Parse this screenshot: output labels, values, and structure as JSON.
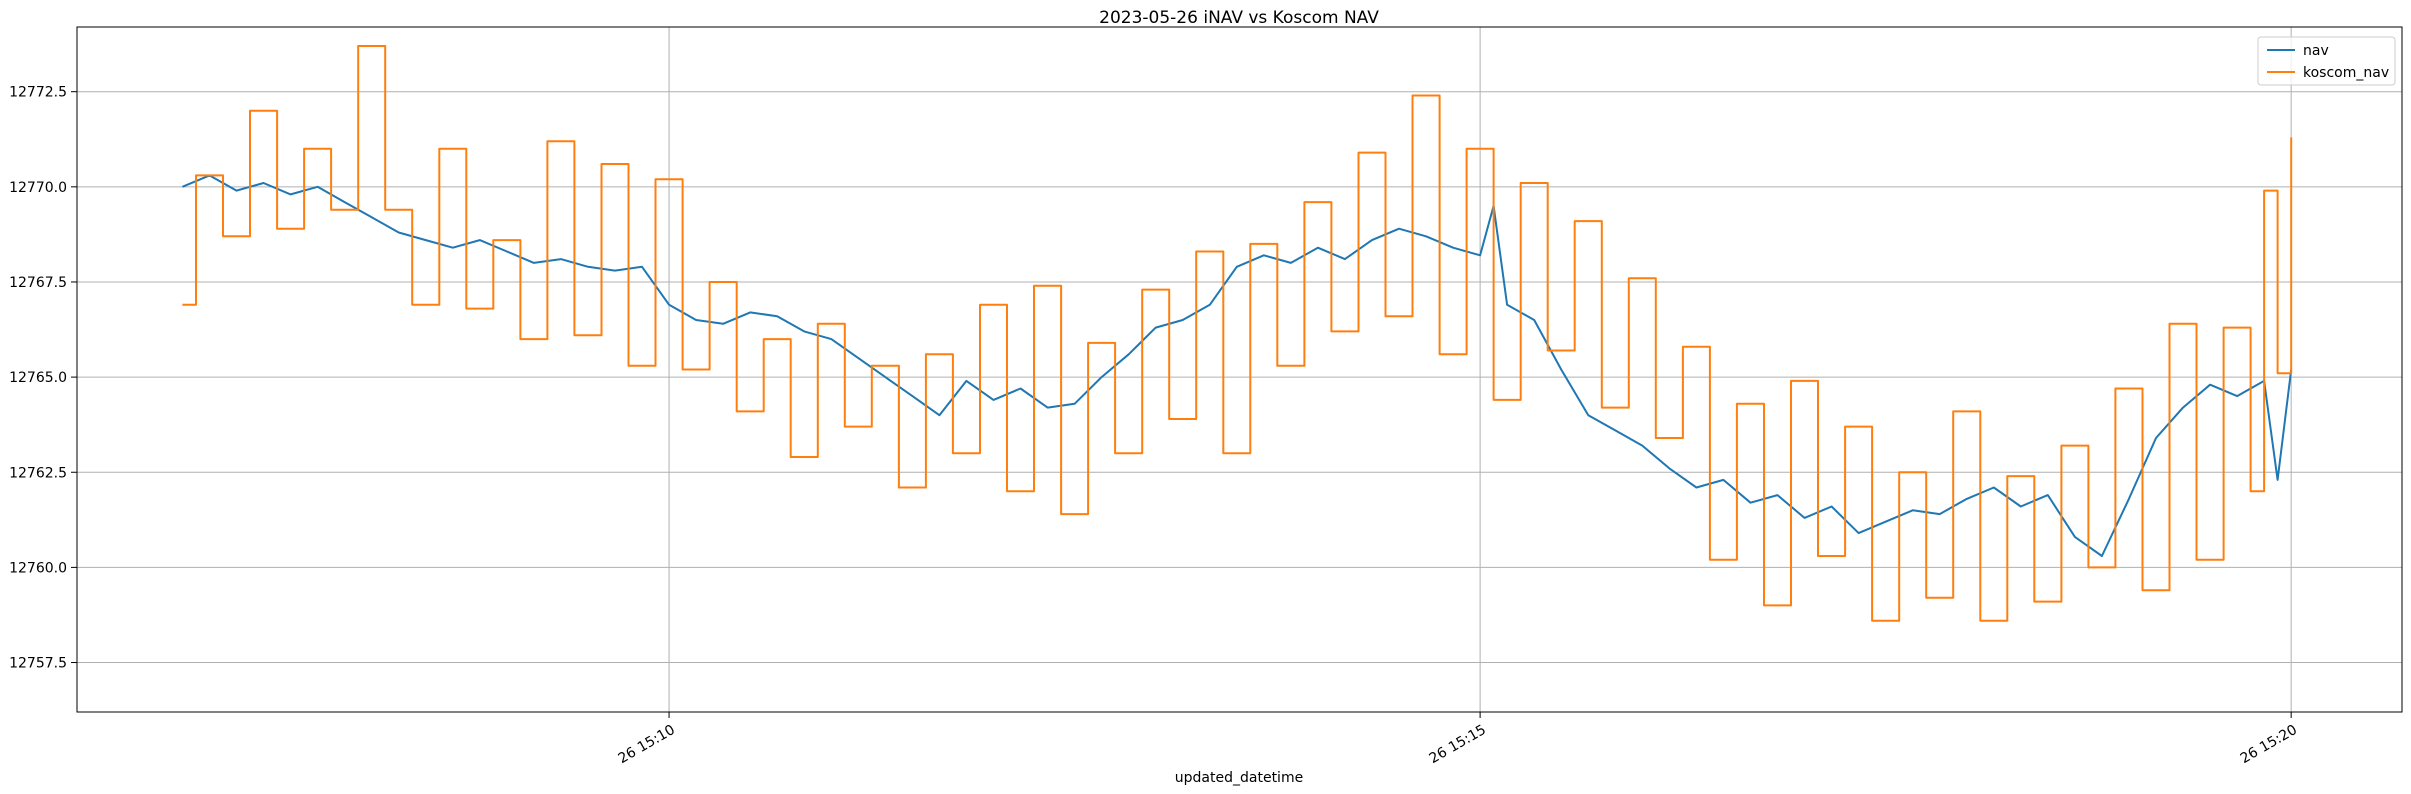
{
  "chart_data": {
    "type": "line",
    "title": "2023-05-26 iNAV vs Koscom NAV",
    "xlabel": "updated_datetime",
    "ylabel": "",
    "x_axis": {
      "kind": "time",
      "range": [
        "2023-05-26 15:06:21",
        "2023-05-26 15:20:41"
      ],
      "ticks": [
        {
          "value": "2023-05-26 15:10:00",
          "label": "26 15:10"
        },
        {
          "value": "2023-05-26 15:15:00",
          "label": "26 15:15"
        },
        {
          "value": "2023-05-26 15:20:00",
          "label": "26 15:20"
        }
      ]
    },
    "y_axis": {
      "range": [
        12756.2,
        12774.2
      ],
      "ticks": [
        {
          "value": 12757.5,
          "label": "12757.5"
        },
        {
          "value": 12760.0,
          "label": "12760.0"
        },
        {
          "value": 12762.5,
          "label": "12762.5"
        },
        {
          "value": 12765.0,
          "label": "12765.0"
        },
        {
          "value": 12767.5,
          "label": "12767.5"
        },
        {
          "value": 12770.0,
          "label": "12770.0"
        },
        {
          "value": 12772.5,
          "label": "12772.5"
        }
      ]
    },
    "grid": true,
    "legend_position": "top-right",
    "series": [
      {
        "name": "nav",
        "color": "#1f77b4",
        "step": false,
        "points": [
          [
            "2023-05-26 15:07:00",
            12770.0
          ],
          [
            "2023-05-26 15:07:10",
            12770.3
          ],
          [
            "2023-05-26 15:07:20",
            12769.9
          ],
          [
            "2023-05-26 15:07:30",
            12770.1
          ],
          [
            "2023-05-26 15:07:40",
            12769.8
          ],
          [
            "2023-05-26 15:07:50",
            12770.0
          ],
          [
            "2023-05-26 15:08:00",
            12769.6
          ],
          [
            "2023-05-26 15:08:10",
            12769.2
          ],
          [
            "2023-05-26 15:08:20",
            12768.8
          ],
          [
            "2023-05-26 15:08:30",
            12768.6
          ],
          [
            "2023-05-26 15:08:40",
            12768.4
          ],
          [
            "2023-05-26 15:08:50",
            12768.6
          ],
          [
            "2023-05-26 15:09:00",
            12768.3
          ],
          [
            "2023-05-26 15:09:10",
            12768.0
          ],
          [
            "2023-05-26 15:09:20",
            12768.1
          ],
          [
            "2023-05-26 15:09:30",
            12767.9
          ],
          [
            "2023-05-26 15:09:40",
            12767.8
          ],
          [
            "2023-05-26 15:09:50",
            12767.9
          ],
          [
            "2023-05-26 15:10:00",
            12766.9
          ],
          [
            "2023-05-26 15:10:10",
            12766.5
          ],
          [
            "2023-05-26 15:10:20",
            12766.4
          ],
          [
            "2023-05-26 15:10:30",
            12766.7
          ],
          [
            "2023-05-26 15:10:40",
            12766.6
          ],
          [
            "2023-05-26 15:10:50",
            12766.2
          ],
          [
            "2023-05-26 15:11:00",
            12766.0
          ],
          [
            "2023-05-26 15:11:10",
            12765.5
          ],
          [
            "2023-05-26 15:11:20",
            12765.0
          ],
          [
            "2023-05-26 15:11:30",
            12764.5
          ],
          [
            "2023-05-26 15:11:40",
            12764.0
          ],
          [
            "2023-05-26 15:11:50",
            12764.9
          ],
          [
            "2023-05-26 15:12:00",
            12764.4
          ],
          [
            "2023-05-26 15:12:10",
            12764.7
          ],
          [
            "2023-05-26 15:12:20",
            12764.2
          ],
          [
            "2023-05-26 15:12:30",
            12764.3
          ],
          [
            "2023-05-26 15:12:40",
            12765.0
          ],
          [
            "2023-05-26 15:12:50",
            12765.6
          ],
          [
            "2023-05-26 15:13:00",
            12766.3
          ],
          [
            "2023-05-26 15:13:10",
            12766.5
          ],
          [
            "2023-05-26 15:13:20",
            12766.9
          ],
          [
            "2023-05-26 15:13:30",
            12767.9
          ],
          [
            "2023-05-26 15:13:40",
            12768.2
          ],
          [
            "2023-05-26 15:13:50",
            12768.0
          ],
          [
            "2023-05-26 15:14:00",
            12768.4
          ],
          [
            "2023-05-26 15:14:10",
            12768.1
          ],
          [
            "2023-05-26 15:14:20",
            12768.6
          ],
          [
            "2023-05-26 15:14:30",
            12768.9
          ],
          [
            "2023-05-26 15:14:40",
            12768.7
          ],
          [
            "2023-05-26 15:14:50",
            12768.4
          ],
          [
            "2023-05-26 15:15:00",
            12768.2
          ],
          [
            "2023-05-26 15:15:05",
            12769.5
          ],
          [
            "2023-05-26 15:15:10",
            12766.9
          ],
          [
            "2023-05-26 15:15:20",
            12766.5
          ],
          [
            "2023-05-26 15:15:30",
            12765.2
          ],
          [
            "2023-05-26 15:15:40",
            12764.0
          ],
          [
            "2023-05-26 15:15:50",
            12763.6
          ],
          [
            "2023-05-26 15:16:00",
            12763.2
          ],
          [
            "2023-05-26 15:16:10",
            12762.6
          ],
          [
            "2023-05-26 15:16:20",
            12762.1
          ],
          [
            "2023-05-26 15:16:30",
            12762.3
          ],
          [
            "2023-05-26 15:16:40",
            12761.7
          ],
          [
            "2023-05-26 15:16:50",
            12761.9
          ],
          [
            "2023-05-26 15:17:00",
            12761.3
          ],
          [
            "2023-05-26 15:17:10",
            12761.6
          ],
          [
            "2023-05-26 15:17:20",
            12760.9
          ],
          [
            "2023-05-26 15:17:30",
            12761.2
          ],
          [
            "2023-05-26 15:17:40",
            12761.5
          ],
          [
            "2023-05-26 15:17:50",
            12761.4
          ],
          [
            "2023-05-26 15:18:00",
            12761.8
          ],
          [
            "2023-05-26 15:18:10",
            12762.1
          ],
          [
            "2023-05-26 15:18:20",
            12761.6
          ],
          [
            "2023-05-26 15:18:30",
            12761.9
          ],
          [
            "2023-05-26 15:18:40",
            12760.8
          ],
          [
            "2023-05-26 15:18:50",
            12760.3
          ],
          [
            "2023-05-26 15:19:00",
            12761.8
          ],
          [
            "2023-05-26 15:19:10",
            12763.4
          ],
          [
            "2023-05-26 15:19:20",
            12764.2
          ],
          [
            "2023-05-26 15:19:30",
            12764.8
          ],
          [
            "2023-05-26 15:19:40",
            12764.5
          ],
          [
            "2023-05-26 15:19:50",
            12764.9
          ],
          [
            "2023-05-26 15:19:55",
            12762.3
          ],
          [
            "2023-05-26 15:20:00",
            12765.2
          ]
        ]
      },
      {
        "name": "koscom_nav",
        "color": "#ff7f0e",
        "step": true,
        "points": [
          [
            "2023-05-26 15:07:00",
            12766.9
          ],
          [
            "2023-05-26 15:07:05",
            12770.3
          ],
          [
            "2023-05-26 15:07:15",
            12768.7
          ],
          [
            "2023-05-26 15:07:25",
            12772.0
          ],
          [
            "2023-05-26 15:07:35",
            12768.9
          ],
          [
            "2023-05-26 15:07:45",
            12771.0
          ],
          [
            "2023-05-26 15:07:55",
            12769.4
          ],
          [
            "2023-05-26 15:08:05",
            12773.7
          ],
          [
            "2023-05-26 15:08:15",
            12769.4
          ],
          [
            "2023-05-26 15:08:25",
            12766.9
          ],
          [
            "2023-05-26 15:08:35",
            12771.0
          ],
          [
            "2023-05-26 15:08:45",
            12766.8
          ],
          [
            "2023-05-26 15:08:55",
            12768.6
          ],
          [
            "2023-05-26 15:09:05",
            12766.0
          ],
          [
            "2023-05-26 15:09:15",
            12771.2
          ],
          [
            "2023-05-26 15:09:25",
            12766.1
          ],
          [
            "2023-05-26 15:09:35",
            12770.6
          ],
          [
            "2023-05-26 15:09:45",
            12765.3
          ],
          [
            "2023-05-26 15:09:55",
            12770.2
          ],
          [
            "2023-05-26 15:10:05",
            12765.2
          ],
          [
            "2023-05-26 15:10:15",
            12767.5
          ],
          [
            "2023-05-26 15:10:25",
            12764.1
          ],
          [
            "2023-05-26 15:10:35",
            12766.0
          ],
          [
            "2023-05-26 15:10:45",
            12762.9
          ],
          [
            "2023-05-26 15:10:55",
            12766.4
          ],
          [
            "2023-05-26 15:11:05",
            12763.7
          ],
          [
            "2023-05-26 15:11:15",
            12765.3
          ],
          [
            "2023-05-26 15:11:25",
            12762.1
          ],
          [
            "2023-05-26 15:11:35",
            12765.6
          ],
          [
            "2023-05-26 15:11:45",
            12763.0
          ],
          [
            "2023-05-26 15:11:55",
            12766.9
          ],
          [
            "2023-05-26 15:12:05",
            12762.0
          ],
          [
            "2023-05-26 15:12:15",
            12767.4
          ],
          [
            "2023-05-26 15:12:25",
            12761.4
          ],
          [
            "2023-05-26 15:12:35",
            12765.9
          ],
          [
            "2023-05-26 15:12:45",
            12763.0
          ],
          [
            "2023-05-26 15:12:55",
            12767.3
          ],
          [
            "2023-05-26 15:13:05",
            12763.9
          ],
          [
            "2023-05-26 15:13:15",
            12768.3
          ],
          [
            "2023-05-26 15:13:25",
            12763.0
          ],
          [
            "2023-05-26 15:13:35",
            12768.5
          ],
          [
            "2023-05-26 15:13:45",
            12765.3
          ],
          [
            "2023-05-26 15:13:55",
            12769.6
          ],
          [
            "2023-05-26 15:14:05",
            12766.2
          ],
          [
            "2023-05-26 15:14:15",
            12770.9
          ],
          [
            "2023-05-26 15:14:25",
            12766.6
          ],
          [
            "2023-05-26 15:14:35",
            12772.4
          ],
          [
            "2023-05-26 15:14:45",
            12765.6
          ],
          [
            "2023-05-26 15:14:55",
            12771.0
          ],
          [
            "2023-05-26 15:15:05",
            12764.4
          ],
          [
            "2023-05-26 15:15:15",
            12770.1
          ],
          [
            "2023-05-26 15:15:25",
            12765.7
          ],
          [
            "2023-05-26 15:15:35",
            12769.1
          ],
          [
            "2023-05-26 15:15:45",
            12764.2
          ],
          [
            "2023-05-26 15:15:55",
            12767.6
          ],
          [
            "2023-05-26 15:16:05",
            12763.4
          ],
          [
            "2023-05-26 15:16:15",
            12765.8
          ],
          [
            "2023-05-26 15:16:25",
            12760.2
          ],
          [
            "2023-05-26 15:16:35",
            12764.3
          ],
          [
            "2023-05-26 15:16:45",
            12759.0
          ],
          [
            "2023-05-26 15:16:55",
            12764.9
          ],
          [
            "2023-05-26 15:17:05",
            12760.3
          ],
          [
            "2023-05-26 15:17:15",
            12763.7
          ],
          [
            "2023-05-26 15:17:25",
            12758.6
          ],
          [
            "2023-05-26 15:17:35",
            12762.5
          ],
          [
            "2023-05-26 15:17:45",
            12759.2
          ],
          [
            "2023-05-26 15:17:55",
            12764.1
          ],
          [
            "2023-05-26 15:18:05",
            12758.6
          ],
          [
            "2023-05-26 15:18:15",
            12762.4
          ],
          [
            "2023-05-26 15:18:25",
            12759.1
          ],
          [
            "2023-05-26 15:18:35",
            12763.2
          ],
          [
            "2023-05-26 15:18:45",
            12760.0
          ],
          [
            "2023-05-26 15:18:55",
            12764.7
          ],
          [
            "2023-05-26 15:19:05",
            12759.4
          ],
          [
            "2023-05-26 15:19:15",
            12766.4
          ],
          [
            "2023-05-26 15:19:25",
            12760.2
          ],
          [
            "2023-05-26 15:19:35",
            12766.3
          ],
          [
            "2023-05-26 15:19:45",
            12762.0
          ],
          [
            "2023-05-26 15:19:50",
            12769.9
          ],
          [
            "2023-05-26 15:19:55",
            12765.1
          ],
          [
            "2023-05-26 15:20:00",
            12771.3
          ]
        ]
      }
    ]
  }
}
